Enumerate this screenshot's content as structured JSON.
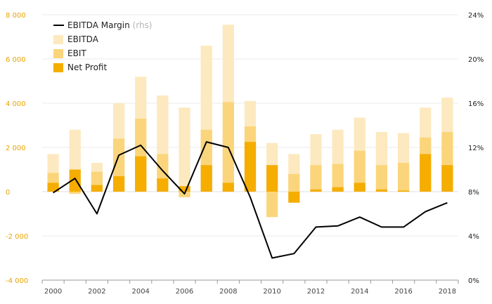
{
  "chart_data": {
    "type": "bar",
    "x": [
      2000,
      2001,
      2002,
      2003,
      2004,
      2005,
      2006,
      2007,
      2008,
      2009,
      2010,
      2011,
      2012,
      2013,
      2014,
      2015,
      2016,
      2017,
      2018
    ],
    "x_tick_labels": [
      "2000",
      "2002",
      "2004",
      "2006",
      "2008",
      "2010",
      "2012",
      "2014",
      "2016",
      "2018"
    ],
    "series": [
      {
        "name": "EBITDA",
        "type": "bar",
        "axis": "left",
        "color": "#fde9bf",
        "values": [
          1700,
          2800,
          1300,
          4000,
          5200,
          4350,
          3800,
          6600,
          7550,
          4100,
          2200,
          1700,
          2600,
          2800,
          3350,
          2700,
          2650,
          3800,
          4250
        ]
      },
      {
        "name": "EBIT",
        "type": "bar",
        "axis": "left",
        "color": "#fbd57b",
        "values": [
          850,
          -100,
          900,
          2400,
          3300,
          1700,
          -250,
          2800,
          4050,
          2950,
          -1150,
          800,
          1200,
          1250,
          1850,
          1200,
          1300,
          2450,
          2700
        ]
      },
      {
        "name": "Net Profit",
        "type": "bar",
        "axis": "left",
        "color": "#f5ad00",
        "values": [
          400,
          1000,
          300,
          700,
          1600,
          600,
          250,
          1200,
          400,
          2250,
          1200,
          -500,
          100,
          200,
          400,
          100,
          50,
          1700,
          1200
        ]
      },
      {
        "name": "EBITDA Margin",
        "name_suffix": "(rhs)",
        "type": "line",
        "axis": "right",
        "color": "#000000",
        "values": [
          7.9,
          9.2,
          6.0,
          11.3,
          12.2,
          9.9,
          7.8,
          12.5,
          12.0,
          7.5,
          2.0,
          2.4,
          4.8,
          4.9,
          5.7,
          4.8,
          4.8,
          6.2,
          7.0
        ]
      }
    ],
    "y_left": {
      "ylim": [
        -4000,
        8000
      ],
      "ticks": [
        -4000,
        -2000,
        0,
        2000,
        4000,
        6000,
        8000
      ],
      "tick_labels": [
        "-4 000",
        "-2 000",
        "0",
        "2 000",
        "4 000",
        "6 000",
        "8 000"
      ],
      "color": "#e8a400"
    },
    "y_right": {
      "ylim": [
        0,
        24
      ],
      "ticks": [
        0,
        4,
        8,
        12,
        16,
        20,
        24
      ],
      "tick_labels": [
        "0%",
        "4%",
        "8%",
        "12%",
        "16%",
        "20%",
        "24%"
      ]
    },
    "legend": {
      "placement": "top-left",
      "order": [
        "EBITDA Margin",
        "EBITDA",
        "EBIT",
        "Net Profit"
      ]
    },
    "grid": true
  }
}
